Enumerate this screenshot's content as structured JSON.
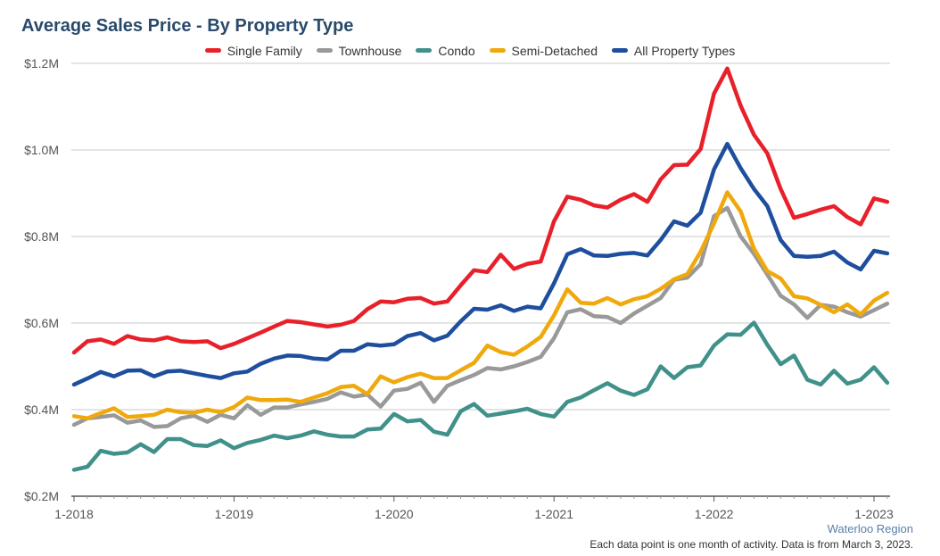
{
  "title": "Average Sales Price - By Property Type",
  "region": "Waterloo Region",
  "footnote": "Each data point is one month of activity. Data is from March 3, 2023.",
  "chart_data": {
    "type": "line",
    "title": "Average Sales Price - By Property Type",
    "xlabel": "",
    "ylabel": "",
    "x": [
      "2018-01",
      "2018-02",
      "2018-03",
      "2018-04",
      "2018-05",
      "2018-06",
      "2018-07",
      "2018-08",
      "2018-09",
      "2018-10",
      "2018-11",
      "2018-12",
      "2019-01",
      "2019-02",
      "2019-03",
      "2019-04",
      "2019-05",
      "2019-06",
      "2019-07",
      "2019-08",
      "2019-09",
      "2019-10",
      "2019-11",
      "2019-12",
      "2020-01",
      "2020-02",
      "2020-03",
      "2020-04",
      "2020-05",
      "2020-06",
      "2020-07",
      "2020-08",
      "2020-09",
      "2020-10",
      "2020-11",
      "2020-12",
      "2021-01",
      "2021-02",
      "2021-03",
      "2021-04",
      "2021-05",
      "2021-06",
      "2021-07",
      "2021-08",
      "2021-09",
      "2021-10",
      "2021-11",
      "2021-12",
      "2022-01",
      "2022-02",
      "2022-03",
      "2022-04",
      "2022-05",
      "2022-06",
      "2022-07",
      "2022-08",
      "2022-09",
      "2022-10",
      "2022-11",
      "2022-12",
      "2023-01",
      "2023-02"
    ],
    "x_ticks": [
      "1-2018",
      "1-2019",
      "1-2020",
      "1-2021",
      "1-2022",
      "1-2023"
    ],
    "y_ticks": [
      "$0.2M",
      "$0.4M",
      "$0.6M",
      "$0.8M",
      "$1.0M",
      "$1.2M"
    ],
    "ylim": [
      200000,
      1200000
    ],
    "grid": true,
    "legend_position": "top",
    "series": [
      {
        "name": "Single Family",
        "color": "#e8202a",
        "values": [
          532000,
          558000,
          562000,
          552000,
          570000,
          562000,
          560000,
          567000,
          558000,
          556000,
          558000,
          542000,
          552000,
          565000,
          578000,
          592000,
          605000,
          602000,
          597000,
          592000,
          596000,
          605000,
          632000,
          650000,
          648000,
          656000,
          658000,
          645000,
          650000,
          687000,
          722000,
          718000,
          758000,
          725000,
          737000,
          742000,
          835000,
          892000,
          885000,
          872000,
          867000,
          885000,
          898000,
          880000,
          932000,
          965000,
          966000,
          1002000,
          1130000,
          1188000,
          1102000,
          1035000,
          992000,
          910000,
          843000,
          852000,
          862000,
          870000,
          845000,
          828000,
          888000,
          880000
        ]
      },
      {
        "name": "Townhouse",
        "color": "#999999",
        "values": [
          365000,
          380000,
          383000,
          387000,
          370000,
          375000,
          360000,
          362000,
          380000,
          386000,
          372000,
          388000,
          380000,
          410000,
          388000,
          405000,
          405000,
          412000,
          418000,
          425000,
          440000,
          430000,
          435000,
          407000,
          444000,
          448000,
          462000,
          418000,
          455000,
          468000,
          480000,
          496000,
          493000,
          500000,
          510000,
          522000,
          565000,
          625000,
          632000,
          616000,
          614000,
          600000,
          622000,
          640000,
          658000,
          700000,
          705000,
          736000,
          847000,
          866000,
          800000,
          760000,
          712000,
          663000,
          643000,
          612000,
          642000,
          638000,
          625000,
          615000,
          630000,
          645000
        ]
      },
      {
        "name": "Condo",
        "color": "#3f918a",
        "values": [
          261000,
          268000,
          305000,
          298000,
          301000,
          320000,
          302000,
          332000,
          332000,
          318000,
          316000,
          329000,
          311000,
          323000,
          330000,
          340000,
          334000,
          340000,
          350000,
          342000,
          338000,
          338000,
          354000,
          356000,
          390000,
          373000,
          376000,
          349000,
          342000,
          396000,
          413000,
          386000,
          391000,
          396000,
          402000,
          390000,
          384000,
          418000,
          428000,
          445000,
          461000,
          444000,
          434000,
          447000,
          500000,
          473000,
          498000,
          502000,
          548000,
          574000,
          573000,
          601000,
          550000,
          505000,
          525000,
          469000,
          458000,
          490000,
          460000,
          469000,
          498000,
          462000
        ]
      },
      {
        "name": "Semi-Detached",
        "color": "#f0a90c",
        "values": [
          385000,
          380000,
          392000,
          403000,
          383000,
          385000,
          388000,
          400000,
          394000,
          393000,
          400000,
          394000,
          406000,
          428000,
          422000,
          422000,
          423000,
          418000,
          428000,
          438000,
          452000,
          455000,
          436000,
          477000,
          463000,
          475000,
          483000,
          473000,
          473000,
          491000,
          508000,
          548000,
          533000,
          527000,
          546000,
          568000,
          618000,
          678000,
          647000,
          645000,
          658000,
          643000,
          655000,
          662000,
          679000,
          701000,
          713000,
          765000,
          830000,
          902000,
          858000,
          772000,
          720000,
          703000,
          662000,
          657000,
          642000,
          625000,
          643000,
          620000,
          652000,
          670000
        ]
      },
      {
        "name": "All Property Types",
        "color": "#1e4e9e",
        "values": [
          458000,
          472000,
          487000,
          477000,
          490000,
          491000,
          477000,
          488000,
          490000,
          484000,
          478000,
          473000,
          484000,
          488000,
          506000,
          518000,
          525000,
          524000,
          518000,
          516000,
          536000,
          536000,
          551000,
          548000,
          551000,
          570000,
          577000,
          560000,
          571000,
          604000,
          633000,
          631000,
          641000,
          628000,
          638000,
          634000,
          692000,
          759000,
          771000,
          756000,
          755000,
          760000,
          762000,
          756000,
          792000,
          835000,
          825000,
          855000,
          955000,
          1014000,
          958000,
          910000,
          870000,
          792000,
          755000,
          753000,
          755000,
          765000,
          740000,
          724000,
          767000,
          761000
        ]
      }
    ]
  }
}
